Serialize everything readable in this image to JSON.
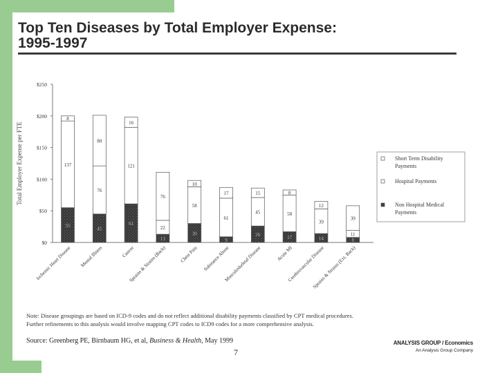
{
  "page": {
    "title_line1": "Top Ten Diseases by Total Employer Expense:",
    "title_line2": "1995-1997",
    "note_line1": "Note: Disease groupings are based on ICD-9 codes and do not reflect additional disability payments classified by CPT medical procedures.",
    "note_line2": "Further refinements to this analysis would involve mapping CPT codes to ICD9 codes for a more comprehensive analysis.",
    "source_prefix": "Source: Greenberg PE, Birnbaum HG, et al, ",
    "source_journal": "Business & Health",
    "source_suffix": ", May 1999",
    "page_number": "7",
    "brand_line1": "ANALYSIS GROUP / Economics",
    "brand_line2": "An Analysis Group Company"
  },
  "chart_data": {
    "type": "bar",
    "stacked": true,
    "ylabel": "Total Employer Expense per FTE",
    "ylim": [
      0,
      250
    ],
    "yticks": [
      0,
      50,
      100,
      150,
      200,
      250
    ],
    "ytick_labels": [
      "$0",
      "$50",
      "$100",
      "$150",
      "$200",
      "$250"
    ],
    "grid": false,
    "legend_position": "right",
    "categories": [
      "Ischemic Heart Disease",
      "Mental Illness",
      "Cancer",
      "Sprains & Strains (Back)",
      "Chest Pain",
      "Substance Abuse",
      "Musculoskeletal Disease",
      "Acute MI",
      "Cerebrovascular Disease",
      "Sprains & Strains (Ext. Back)"
    ],
    "series": [
      {
        "name": "Non Hospital Medical Payments",
        "color": "#3a3a3a",
        "values": [
          55,
          45,
          61,
          13,
          30,
          9,
          26,
          17,
          14,
          8
        ],
        "labels": [
          "55",
          "45",
          "61",
          "13",
          "30",
          "9",
          "26",
          "17",
          "14",
          "8"
        ]
      },
      {
        "name": "Hospital Payments",
        "color": "#ffffff",
        "values": [
          137,
          76,
          121,
          22,
          58,
          61,
          45,
          58,
          39,
          11
        ],
        "labels": [
          "137",
          "76",
          "121",
          "22",
          "58",
          "61",
          "45",
          "58",
          "39",
          "11"
        ]
      },
      {
        "name": "Short Term Disability Payments",
        "color": "#ffffff",
        "values": [
          8,
          80,
          16,
          76,
          10,
          17,
          15,
          8,
          12,
          39
        ],
        "labels": [
          "8",
          "80",
          "16",
          "76",
          "10",
          "17",
          "15",
          "8",
          "12",
          "39"
        ]
      }
    ]
  }
}
